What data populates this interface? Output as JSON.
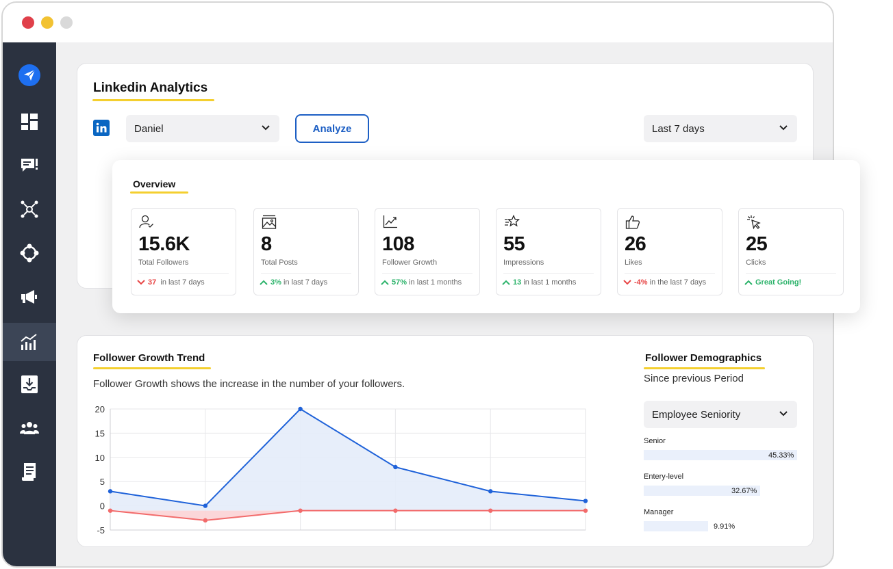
{
  "app": {
    "title": "Linkedin Analytics",
    "profile_select": "Daniel",
    "analyze_label": "Analyze",
    "period_select": "Last 7 days"
  },
  "sidebar": {
    "items": [
      {
        "name": "logo-send-icon"
      },
      {
        "name": "dashboard-icon"
      },
      {
        "name": "messages-icon"
      },
      {
        "name": "network-icon"
      },
      {
        "name": "integrations-icon"
      },
      {
        "name": "campaigns-icon"
      },
      {
        "name": "analytics-icon",
        "active": true
      },
      {
        "name": "inbox-download-icon"
      },
      {
        "name": "team-icon"
      },
      {
        "name": "reports-icon"
      }
    ]
  },
  "overview": {
    "title": "Overview",
    "stats": [
      {
        "value": "15.6K",
        "label": "Total Followers",
        "trend": "down",
        "change": "37",
        "period": "in last 7 days",
        "icon": "user-check-icon"
      },
      {
        "value": "8",
        "label": "Total Posts",
        "trend": "up",
        "change": "3%",
        "period": "in last 7 days",
        "icon": "image-icon"
      },
      {
        "value": "108",
        "label": "Follower Growth",
        "trend": "up",
        "change": "57%",
        "period": "in last 1 months",
        "icon": "trend-up-icon"
      },
      {
        "value": "55",
        "label": "Impressions",
        "trend": "up",
        "change": "13",
        "period": "in last 1 months",
        "icon": "star-icon"
      },
      {
        "value": "26",
        "label": "Likes",
        "trend": "down",
        "change": "-4%",
        "period": "in the last 7 days",
        "icon": "thumbs-up-icon"
      },
      {
        "value": "25",
        "label": "Clicks",
        "trend": "up",
        "change": "Great Going!",
        "period": "",
        "icon": "cursor-click-icon"
      }
    ]
  },
  "growth": {
    "title": "Follower Growth Trend",
    "description": "Follower Growth shows the increase in the number of your followers."
  },
  "chart_data": {
    "type": "line",
    "title": "",
    "xlabel": "",
    "ylabel": "",
    "x": [
      0,
      1,
      2,
      3,
      4,
      5
    ],
    "ylim": [
      -5,
      20
    ],
    "yticks": [
      "20",
      "15",
      "10",
      "5",
      "0",
      "-5"
    ],
    "grid": true,
    "series": [
      {
        "values": [
          3,
          0,
          20,
          8,
          3,
          1
        ],
        "color": "#1f62d9",
        "fill": "#e4ecfa"
      },
      {
        "values": [
          -1,
          -3,
          -1,
          -1,
          -1,
          -1
        ],
        "color": "#f26b6b",
        "fill": "#fbd3d5"
      }
    ]
  },
  "demographics": {
    "title": "Follower Demographics",
    "subtitle": "Since previous Period",
    "select": "Employee Seniority",
    "items": [
      {
        "label": "Senior",
        "percent": 45.33,
        "display": "45.33%"
      },
      {
        "label": "Entery-level",
        "percent": 32.67,
        "display": "32.67%"
      },
      {
        "label": "Manager",
        "percent": 9.91,
        "display": "9.91%"
      }
    ]
  },
  "colors": {
    "accent": "#1d5fc4",
    "underline": "#f4cf2f",
    "sidebar": "#2b3240",
    "positive": "#2db36b",
    "negative": "#e74444"
  }
}
